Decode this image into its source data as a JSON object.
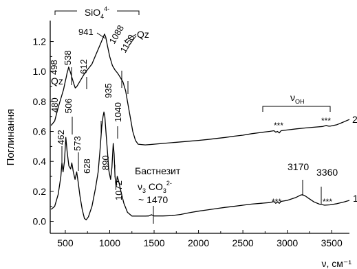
{
  "chart_data": {
    "type": "line",
    "title": "",
    "xlabel": "ν, см⁻¹",
    "ylabel": "Поглинання",
    "xlim": [
      330,
      3700
    ],
    "ylim": [
      -0.08,
      1.34
    ],
    "x_ticks": [
      500,
      1000,
      1500,
      2000,
      2500,
      3000,
      3500
    ],
    "x_tick_labels": [
      "500",
      "1000",
      "1500",
      "2000",
      "2500",
      "3000",
      "3500"
    ],
    "y_ticks": [
      0.0,
      0.2,
      0.4,
      0.6,
      0.8,
      1.0,
      1.2
    ],
    "y_tick_labels": [
      "0.0",
      "0.2",
      "0.4",
      "0.6",
      "0.8",
      "1.0",
      "1.2"
    ],
    "grid": false,
    "series": [
      {
        "name": "2",
        "color": "#000000",
        "points": [
          [
            340,
            0.64
          ],
          [
            380,
            0.67
          ],
          [
            420,
            0.76
          ],
          [
            450,
            0.82
          ],
          [
            470,
            0.86
          ],
          [
            480,
            0.88
          ],
          [
            498,
            0.93
          ],
          [
            510,
            0.96
          ],
          [
            520,
            0.99
          ],
          [
            530,
            1.01
          ],
          [
            538,
            1.03
          ],
          [
            555,
            1.0
          ],
          [
            575,
            0.96
          ],
          [
            595,
            0.92
          ],
          [
            612,
            0.89
          ],
          [
            630,
            0.9
          ],
          [
            650,
            0.92
          ],
          [
            680,
            0.95
          ],
          [
            720,
            0.99
          ],
          [
            760,
            1.02
          ],
          [
            800,
            1.05
          ],
          [
            850,
            1.12
          ],
          [
            900,
            1.19
          ],
          [
            935,
            1.24
          ],
          [
            941,
            1.25
          ],
          [
            955,
            1.23
          ],
          [
            975,
            1.17
          ],
          [
            1000,
            1.1
          ],
          [
            1030,
            1.04
          ],
          [
            1060,
            1.01
          ],
          [
            1088,
            0.99
          ],
          [
            1110,
            0.97
          ],
          [
            1150,
            0.93
          ],
          [
            1180,
            0.87
          ],
          [
            1200,
            0.8
          ],
          [
            1230,
            0.7
          ],
          [
            1260,
            0.6
          ],
          [
            1290,
            0.54
          ],
          [
            1320,
            0.515
          ],
          [
            1400,
            0.51
          ],
          [
            1500,
            0.515
          ],
          [
            1600,
            0.52
          ],
          [
            1700,
            0.525
          ],
          [
            1800,
            0.53
          ],
          [
            1900,
            0.535
          ],
          [
            2000,
            0.54
          ],
          [
            2100,
            0.546
          ],
          [
            2200,
            0.553
          ],
          [
            2300,
            0.56
          ],
          [
            2400,
            0.568
          ],
          [
            2500,
            0.575
          ],
          [
            2600,
            0.585
          ],
          [
            2700,
            0.593
          ],
          [
            2800,
            0.6
          ],
          [
            2850,
            0.605
          ],
          [
            2870,
            0.595
          ],
          [
            2890,
            0.6
          ],
          [
            2910,
            0.59
          ],
          [
            2930,
            0.605
          ],
          [
            3000,
            0.61
          ],
          [
            3100,
            0.617
          ],
          [
            3200,
            0.623
          ],
          [
            3300,
            0.628
          ],
          [
            3400,
            0.633
          ],
          [
            3440,
            0.64
          ],
          [
            3460,
            0.636
          ],
          [
            3480,
            0.635
          ],
          [
            3560,
            0.645
          ],
          [
            3620,
            0.66
          ],
          [
            3680,
            0.675
          ],
          [
            3700,
            0.68
          ]
        ]
      },
      {
        "name": "1",
        "color": "#000000",
        "points": [
          [
            340,
            0.08
          ],
          [
            380,
            0.1
          ],
          [
            420,
            0.18
          ],
          [
            450,
            0.3
          ],
          [
            462,
            0.39
          ],
          [
            475,
            0.33
          ],
          [
            490,
            0.4
          ],
          [
            506,
            0.56
          ],
          [
            520,
            0.47
          ],
          [
            540,
            0.37
          ],
          [
            560,
            0.35
          ],
          [
            573,
            0.39
          ],
          [
            590,
            0.33
          ],
          [
            610,
            0.28
          ],
          [
            628,
            0.33
          ],
          [
            645,
            0.26
          ],
          [
            665,
            0.17
          ],
          [
            690,
            0.08
          ],
          [
            715,
            0.02
          ],
          [
            735,
            0.01
          ],
          [
            760,
            0.03
          ],
          [
            800,
            0.1
          ],
          [
            840,
            0.22
          ],
          [
            870,
            0.33
          ],
          [
            890,
            0.47
          ],
          [
            910,
            0.63
          ],
          [
            925,
            0.7
          ],
          [
            935,
            0.73
          ],
          [
            945,
            0.7
          ],
          [
            960,
            0.58
          ],
          [
            975,
            0.46
          ],
          [
            990,
            0.34
          ],
          [
            1010,
            0.28
          ],
          [
            1025,
            0.36
          ],
          [
            1040,
            0.52
          ],
          [
            1050,
            0.45
          ],
          [
            1060,
            0.3
          ],
          [
            1072,
            0.23
          ],
          [
            1085,
            0.3
          ],
          [
            1100,
            0.27
          ],
          [
            1130,
            0.19
          ],
          [
            1160,
            0.12
          ],
          [
            1200,
            0.06
          ],
          [
            1250,
            0.035
          ],
          [
            1300,
            0.035
          ],
          [
            1400,
            0.035
          ],
          [
            1440,
            0.036
          ],
          [
            1470,
            0.044
          ],
          [
            1500,
            0.036
          ],
          [
            1600,
            0.036
          ],
          [
            1700,
            0.038
          ],
          [
            1800,
            0.046
          ],
          [
            1900,
            0.058
          ],
          [
            2000,
            0.068
          ],
          [
            2100,
            0.076
          ],
          [
            2200,
            0.085
          ],
          [
            2300,
            0.093
          ],
          [
            2400,
            0.1
          ],
          [
            2500,
            0.108
          ],
          [
            2600,
            0.115
          ],
          [
            2700,
            0.12
          ],
          [
            2800,
            0.125
          ],
          [
            2850,
            0.132
          ],
          [
            2870,
            0.12
          ],
          [
            2890,
            0.13
          ],
          [
            2910,
            0.12
          ],
          [
            2930,
            0.133
          ],
          [
            3000,
            0.14
          ],
          [
            3100,
            0.16
          ],
          [
            3150,
            0.175
          ],
          [
            3170,
            0.178
          ],
          [
            3200,
            0.17
          ],
          [
            3250,
            0.15
          ],
          [
            3300,
            0.13
          ],
          [
            3360,
            0.115
          ],
          [
            3420,
            0.108
          ],
          [
            3480,
            0.11
          ],
          [
            3560,
            0.118
          ],
          [
            3640,
            0.13
          ],
          [
            3700,
            0.14
          ]
        ]
      }
    ],
    "annotations": {
      "group_label": {
        "main": "SiO",
        "sub": "4",
        "sup": "4-"
      },
      "qz": "Qz",
      "qz2": "Qz",
      "peaks_top": [
        {
          "label": "941",
          "x": 941,
          "y": 1.25
        },
        {
          "label": "1088",
          "x": 1088,
          "y": 0.99
        },
        {
          "label": "1150",
          "x": 1150,
          "y": 0.93
        },
        {
          "label": "498",
          "x": 498,
          "y": 0.93
        },
        {
          "label": "538",
          "x": 538,
          "y": 1.03
        },
        {
          "label": "612",
          "x": 612,
          "y": 0.89
        },
        {
          "label": "935",
          "x": 935,
          "y": 1.24
        },
        {
          "label": "480",
          "x": 480,
          "y": 0.88
        }
      ],
      "peaks_bottom": [
        {
          "label": "506",
          "x": 506,
          "y": 0.56
        },
        {
          "label": "462",
          "x": 462,
          "y": 0.39
        },
        {
          "label": "573",
          "x": 573,
          "y": 0.39
        },
        {
          "label": "628",
          "x": 628,
          "y": 0.33
        },
        {
          "label": "890",
          "x": 890,
          "y": 0.47
        },
        {
          "label": "1040",
          "x": 1040,
          "y": 0.52
        },
        {
          "label": "1072",
          "x": 1072,
          "y": 0.23
        },
        {
          "label": "3170",
          "x": 3170,
          "y": 0.178
        },
        {
          "label": "3360",
          "x": 3360,
          "y": 0.115
        }
      ],
      "bastnesite": "Бастнезит",
      "co3": {
        "nu": "ν",
        "nu_sub": "3",
        "main": " CO",
        "sub": "3",
        "sup": "2-"
      },
      "co3_value": "~ 1470",
      "voh": {
        "nu": "ν",
        "sub": "OH"
      },
      "stars": "***",
      "curve_label_2": "2",
      "curve_label_1": "1"
    }
  }
}
